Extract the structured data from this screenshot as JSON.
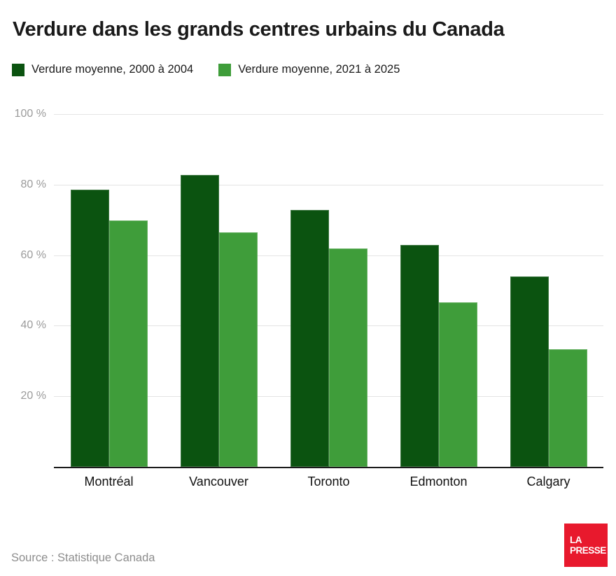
{
  "title": "Verdure dans les grands centres urbains du Canada",
  "legend": [
    {
      "label": "Verdure moyenne, 2000 à 2004",
      "color": "#0b5310"
    },
    {
      "label": "Verdure moyenne, 2021 à 2025",
      "color": "#3f9d3a"
    }
  ],
  "source": "Source : Statistique Canada",
  "logo": {
    "line1": "LA",
    "line2": "PRESSE",
    "bg_color": "#e8192d",
    "text_color": "#ffffff"
  },
  "chart_data": {
    "type": "bar",
    "title": "Verdure dans les grands centres urbains du Canada",
    "categories": [
      "Montréal",
      "Vancouver",
      "Toronto",
      "Edmonton",
      "Calgary"
    ],
    "series": [
      {
        "name": "Verdure moyenne, 2000 à 2004",
        "color": "#0b5310",
        "values": [
          78.6,
          82.8,
          72.9,
          62.9,
          54.0
        ]
      },
      {
        "name": "Verdure moyenne, 2021 à 2025",
        "color": "#3f9d3a",
        "values": [
          69.9,
          66.5,
          62.0,
          46.6,
          33.4
        ]
      }
    ],
    "xlabel": "",
    "ylabel": "",
    "ylim": [
      0,
      100
    ],
    "y_ticks": [
      100,
      80,
      60,
      40,
      20
    ],
    "y_tick_suffix": " %",
    "grid": "horizontal",
    "legend_position": "top-left",
    "axis_color": "#1b1b1b",
    "gridline_color": "#e4e4e4"
  }
}
